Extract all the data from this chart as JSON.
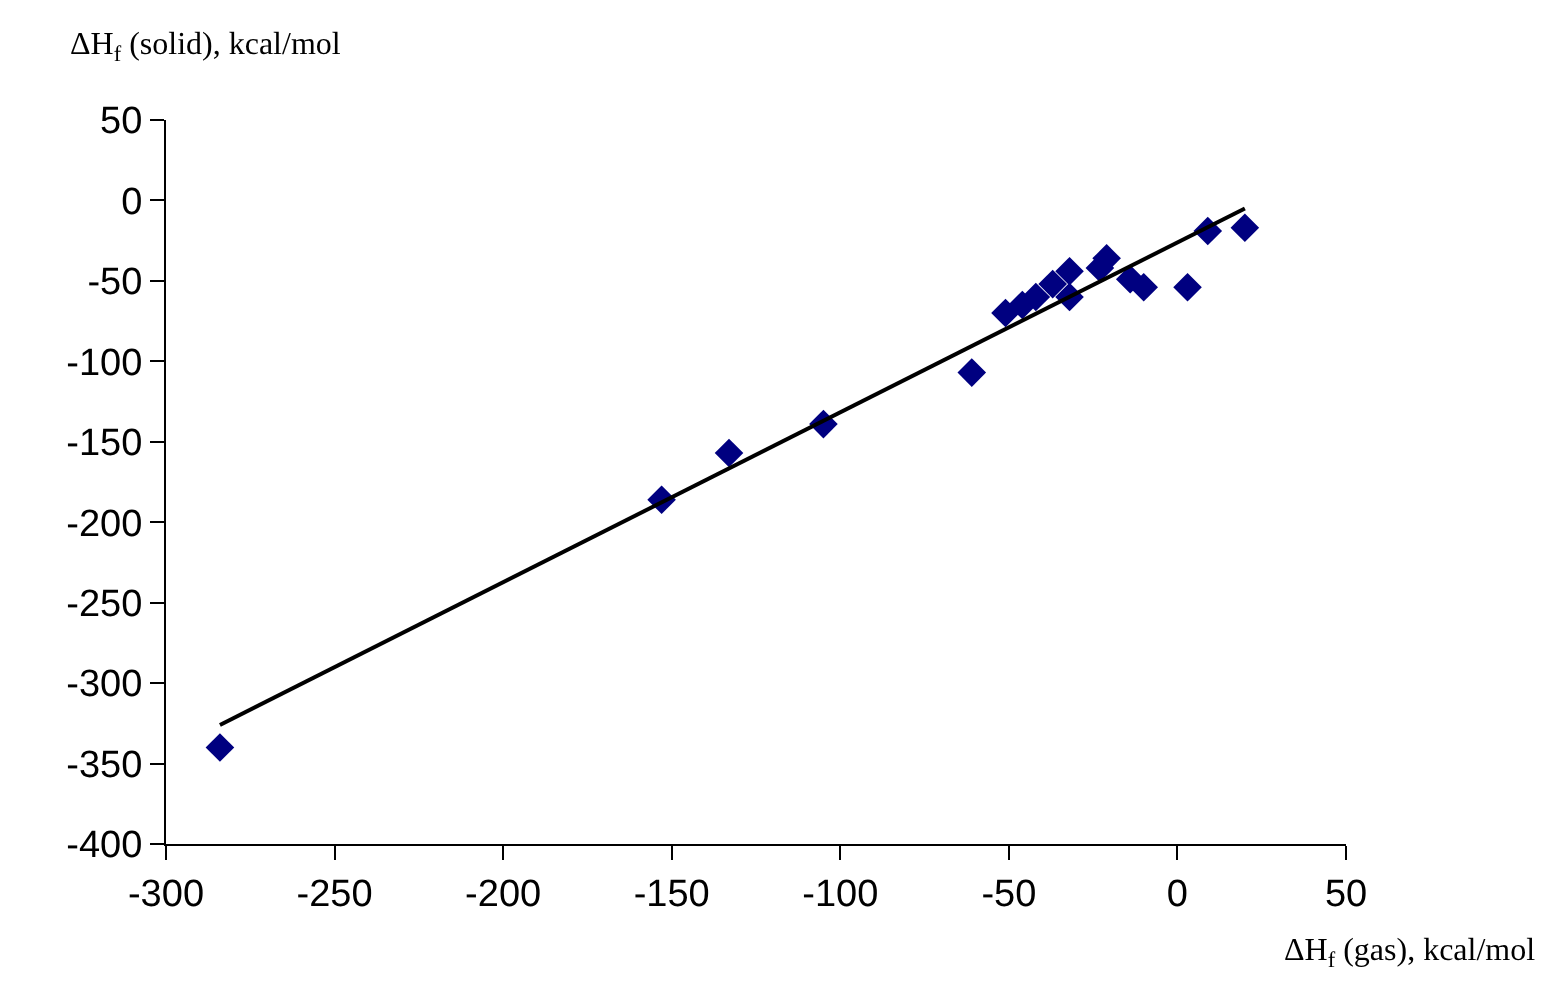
{
  "chart_data": {
    "type": "scatter",
    "xlabel": "ΔH$_{f}$ (gas), kcal/mol",
    "ylabel": "ΔH$_{f}$ (solid), kcal/mol",
    "xlim": [
      -300,
      50
    ],
    "xticks": [
      -300,
      -250,
      -200,
      -150,
      -100,
      -50,
      0,
      50
    ],
    "ylim": [
      -400,
      50
    ],
    "yticks": [
      -400,
      -350,
      -300,
      -250,
      -200,
      -150,
      -100,
      -50,
      0,
      50
    ],
    "series": [
      {
        "marker": "diamond",
        "color": "#000080",
        "x": [
          -284,
          -153,
          -133,
          -105,
          -61,
          -51,
          -46,
          -42,
          -37,
          -32,
          -32,
          -23,
          -21,
          -14,
          -10,
          3,
          9,
          20
        ],
        "values": [
          -340,
          -186,
          -157,
          -139,
          -107,
          -70,
          -65,
          -60,
          -52,
          -60,
          -44,
          -42,
          -36,
          -49,
          -54,
          -54,
          -19,
          -17
        ]
      },
      {
        "type": "line",
        "color": "#000000",
        "line_style": "solid",
        "x": [
          -284,
          20
        ],
        "values": [
          -326,
          -5
        ]
      }
    ]
  }
}
